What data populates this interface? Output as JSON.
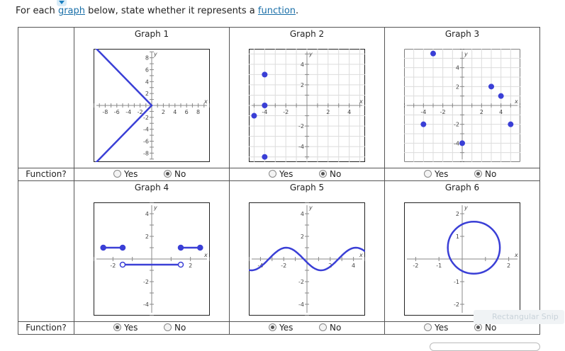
{
  "instruction": {
    "prefix": "For each ",
    "link1": "graph",
    "middle": " below, state whether it represents a ",
    "link2": "function",
    "suffix": "."
  },
  "row_label": "Function?",
  "yes_label": "Yes",
  "no_label": "No",
  "graphs": [
    {
      "title": "Graph 1",
      "selected": "No"
    },
    {
      "title": "Graph 2",
      "selected": "No"
    },
    {
      "title": "Graph 3",
      "selected": "No"
    },
    {
      "title": "Graph 4",
      "selected": "Yes"
    },
    {
      "title": "Graph 5",
      "selected": "Yes"
    },
    {
      "title": "Graph 6",
      "selected": "No"
    }
  ],
  "axis_var_x": "x",
  "axis_var_y": "y",
  "ghost_text": "Rectangular Snip",
  "colors": {
    "curve": "#3a3fd6",
    "grid": "#dcdcdc",
    "axis": "#888888",
    "link": "#1a6fa8"
  }
}
